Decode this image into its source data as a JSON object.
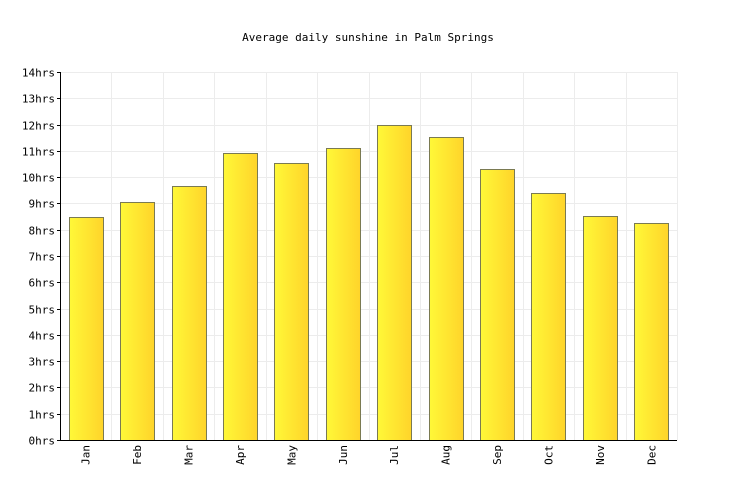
{
  "chart_data": {
    "type": "bar",
    "title": "Average daily sunshine in Palm Springs",
    "categories": [
      "Jan",
      "Feb",
      "Mar",
      "Apr",
      "May",
      "Jun",
      "Jul",
      "Aug",
      "Sep",
      "Oct",
      "Nov",
      "Dec"
    ],
    "values": [
      8.5,
      9.05,
      9.65,
      10.9,
      10.55,
      11.1,
      11.98,
      11.52,
      10.3,
      9.4,
      8.52,
      8.25
    ],
    "ylim": [
      0,
      14
    ],
    "y_ticks": [
      "0hrs",
      "1hrs",
      "2hrs",
      "3hrs",
      "4hrs",
      "5hrs",
      "6hrs",
      "7hrs",
      "8hrs",
      "9hrs",
      "10hrs",
      "11hrs",
      "12hrs",
      "13hrs",
      "14hrs"
    ],
    "xlabel": "",
    "ylabel": "",
    "grid": true,
    "bar_color": "#ffd42a",
    "bar_color_light": "#fff838"
  }
}
